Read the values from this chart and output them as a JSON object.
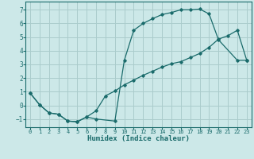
{
  "xlabel": "Humidex (Indice chaleur)",
  "background_color": "#cce8e8",
  "grid_color": "#aacccc",
  "line_color": "#1a6b6b",
  "xlim": [
    -0.5,
    23.5
  ],
  "ylim": [
    -1.6,
    7.6
  ],
  "xticks": [
    0,
    1,
    2,
    3,
    4,
    5,
    6,
    7,
    8,
    9,
    10,
    11,
    12,
    13,
    14,
    15,
    16,
    17,
    18,
    19,
    20,
    21,
    22,
    23
  ],
  "yticks": [
    -1,
    0,
    1,
    2,
    3,
    4,
    5,
    6,
    7
  ],
  "curve1_x": [
    0,
    1,
    2,
    3,
    4,
    5,
    6,
    7,
    9,
    10,
    11,
    12,
    13,
    14,
    15,
    16,
    17,
    18,
    19,
    20,
    22,
    23
  ],
  "curve1_y": [
    0.9,
    0.05,
    -0.55,
    -0.65,
    -1.15,
    -1.2,
    -0.85,
    -1.0,
    -1.15,
    3.3,
    5.5,
    6.0,
    6.35,
    6.65,
    6.8,
    7.0,
    7.0,
    7.05,
    6.7,
    4.8,
    3.3,
    3.3
  ],
  "curve2_x": [
    0,
    1,
    2,
    3,
    4,
    5,
    6,
    7,
    8,
    9,
    10,
    11,
    12,
    13,
    14,
    15,
    16,
    17,
    18,
    19,
    20,
    21,
    22,
    23
  ],
  "curve2_y": [
    0.9,
    0.05,
    -0.55,
    -0.65,
    -1.15,
    -1.2,
    -0.85,
    -0.4,
    0.7,
    1.05,
    1.5,
    1.85,
    2.2,
    2.5,
    2.8,
    3.05,
    3.2,
    3.5,
    3.8,
    4.25,
    4.85,
    5.1,
    5.5,
    3.3
  ]
}
